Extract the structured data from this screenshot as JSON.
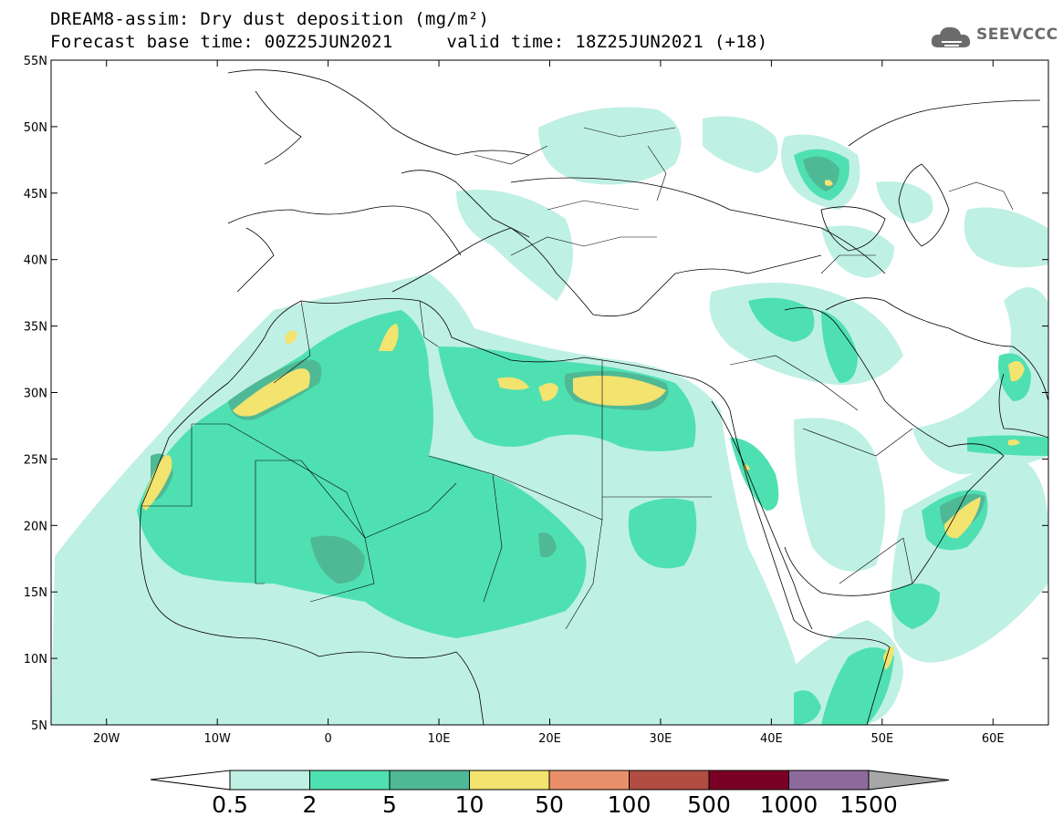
{
  "header": {
    "title_line1": "DREAM8-assim: Dry dust deposition (mg/m²)",
    "title_line2": "Forecast base time: 00Z25JUN2021     valid time: 18Z25JUN2021 (+18)"
  },
  "logo": {
    "text": "SEEVCCC",
    "icon": "cloud-logo-icon"
  },
  "map": {
    "lon_range": [
      -25,
      65
    ],
    "lat_range": [
      5,
      55
    ],
    "lat_ticks": [
      "5N",
      "10N",
      "15N",
      "20N",
      "25N",
      "30N",
      "35N",
      "40N",
      "45N",
      "50N",
      "55N"
    ],
    "lon_ticks": [
      "20W",
      "10W",
      "0",
      "10E",
      "20E",
      "30E",
      "40E",
      "50E",
      "60E"
    ],
    "field": "dry dust deposition",
    "units": "mg/m²"
  },
  "colorbar": {
    "labels": [
      "0.5",
      "2",
      "5",
      "10",
      "50",
      "100",
      "500",
      "1000",
      "1500"
    ],
    "colors": [
      "#bff0e4",
      "#4fe0b2",
      "#4fb996",
      "#f3e36f",
      "#e9906a",
      "#b14d42",
      "#7a0026",
      "#8e6a9c",
      "#a7a7a7"
    ]
  }
}
